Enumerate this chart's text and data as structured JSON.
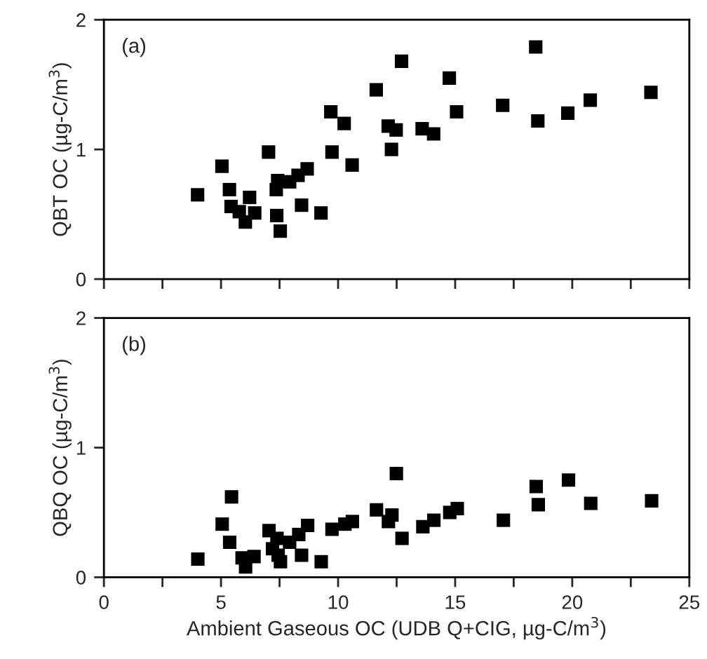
{
  "chart_data": [
    {
      "type": "scatter",
      "ylabel": "QBT OC (µg-C/m$^{3}$)",
      "annotations": [
        "(a)"
      ],
      "marker": "square",
      "color": "#000000",
      "tick_labels": "y",
      "x": [
        4.0,
        5.04,
        5.36,
        5.43,
        5.78,
        5.94,
        6.22,
        6.04,
        6.44,
        7.03,
        7.18,
        7.42,
        7.36,
        7.38,
        7.53,
        7.93,
        8.29,
        8.68,
        8.29,
        8.44,
        9.27,
        9.69,
        9.74,
        10.26,
        10.6,
        11.63,
        12.71,
        12.14,
        12.48,
        12.28,
        13.59,
        14.08,
        14.75,
        15.06,
        17.03,
        18.44,
        18.53,
        19.81,
        20.77,
        23.36
      ],
      "values": [
        0.65,
        0.87,
        0.69,
        0.56,
        0.52,
        null,
        0.63,
        0.44,
        0.51,
        0.98,
        null,
        0.76,
        0.69,
        0.49,
        0.37,
        0.75,
        null,
        0.85,
        0.8,
        0.57,
        0.51,
        1.29,
        0.98,
        1.2,
        0.88,
        1.46,
        1.68,
        1.18,
        1.15,
        1.0,
        1.16,
        1.12,
        1.55,
        1.29,
        1.34,
        1.79,
        1.22,
        1.28,
        1.38,
        1.44
      ],
      "xlim": [
        0,
        25
      ],
      "xticks": [
        0,
        {
          "value": 2.5,
          "label": null
        },
        5,
        {
          "value": 7.5,
          "label": null
        },
        10,
        {
          "value": 12.5,
          "label": null
        },
        15,
        {
          "value": 17.5,
          "label": null
        },
        20,
        {
          "value": 22.5,
          "label": null
        },
        25
      ],
      "ylim": [
        0,
        2
      ],
      "yticks": [
        0,
        1,
        2
      ]
    },
    {
      "type": "scatter",
      "ylabel": "QBQ OC (µg-C/m$^{3}$)",
      "xlabel": "Ambient Gaseous OC (UDB Q+CIG, µg-C/m$^{3}$)",
      "annotations": [
        "(b)"
      ],
      "marker": "square",
      "color": "#000000",
      "x": [
        4.01,
        5.05,
        5.45,
        5.37,
        5.78,
        6.05,
        6.41,
        5.9,
        7.05,
        7.39,
        7.2,
        7.44,
        7.54,
        7.93,
        8.32,
        8.7,
        8.44,
        9.28,
        9.74,
        10.29,
        10.61,
        11.64,
        12.49,
        12.3,
        12.15,
        12.73,
        13.62,
        14.09,
        14.77,
        15.09,
        17.06,
        18.46,
        18.55,
        19.84,
        20.79,
        23.39
      ],
      "values": [
        0.14,
        0.41,
        0.62,
        0.27,
        null,
        0.08,
        0.16,
        0.15,
        0.36,
        0.3,
        0.22,
        0.17,
        0.12,
        0.27,
        0.33,
        0.4,
        0.17,
        0.12,
        0.37,
        0.41,
        0.43,
        0.52,
        0.8,
        0.48,
        0.43,
        0.3,
        0.39,
        0.44,
        0.5,
        0.53,
        0.44,
        0.7,
        0.56,
        0.75,
        0.57,
        0.59
      ],
      "xlim": [
        0,
        25
      ],
      "xticks": [
        0,
        {
          "value": 2.5,
          "label": null
        },
        5,
        {
          "value": 7.5,
          "label": null
        },
        10,
        {
          "value": 12.5,
          "label": null
        },
        15,
        {
          "value": 17.5,
          "label": null
        },
        20,
        {
          "value": 22.5,
          "label": null
        },
        25
      ],
      "ylim": [
        0,
        2
      ],
      "yticks": [
        0,
        1,
        2
      ]
    }
  ]
}
